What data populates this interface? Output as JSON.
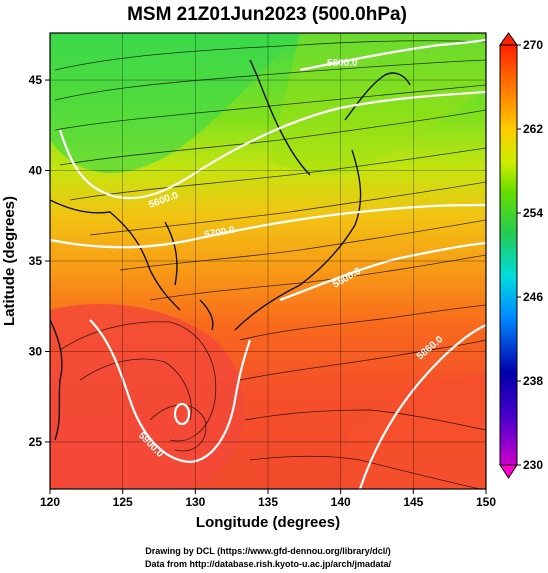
{
  "chart_data": {
    "type": "heatmap",
    "title": "MSM 21Z01Jun2023 (500.0hPa)",
    "xlabel": "Longitude (degrees)",
    "ylabel": "Latitude  (degrees)",
    "xlim": [
      120,
      150
    ],
    "ylim": [
      22.4,
      47.6
    ],
    "x_ticks": [
      "120",
      "125",
      "130",
      "135",
      "140",
      "145",
      "150"
    ],
    "y_ticks": [
      "25",
      "30",
      "35",
      "40",
      "45"
    ],
    "grid": true,
    "colorbar": {
      "min": 230,
      "max": 270,
      "ticks": [
        "270",
        "262",
        "254",
        "246",
        "238",
        "230"
      ],
      "colors": [
        "#cc00cc",
        "#0000aa",
        "#0088ff",
        "#00dddd",
        "#22cc55",
        "#66dd00",
        "#ccee00",
        "#ffcc00",
        "#ff7700",
        "#ff2200"
      ]
    },
    "contours": [
      {
        "label": "5600.0"
      },
      {
        "label": "5700.0"
      },
      {
        "label": "5800.0"
      },
      {
        "label": "5800.0"
      },
      {
        "label": "5860.0"
      },
      {
        "label": "5900.0"
      }
    ]
  },
  "credits": {
    "line1": "Drawing by DCL (https://www.gfd-dennou.org/library/dcl/)",
    "line2": "Data from http://database.rish.kyoto-u.ac.jp/arch/jmadata/"
  }
}
